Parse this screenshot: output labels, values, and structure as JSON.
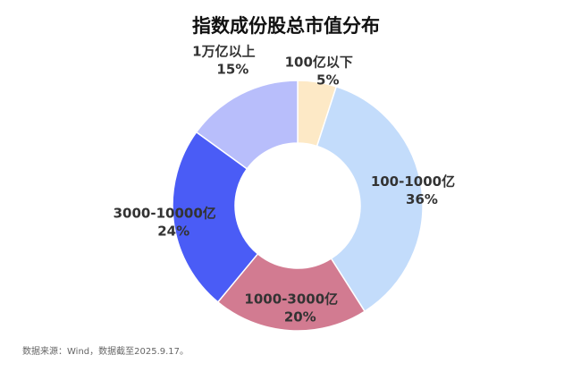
{
  "chart_data": {
    "type": "pie",
    "title": "指数成份股总市值分布",
    "categories": [
      "100亿以下",
      "100-1000亿",
      "1000-3000亿",
      "3000-10000亿",
      "1万亿以上"
    ],
    "values": [
      5,
      36,
      20,
      24,
      15
    ],
    "value_labels": [
      "5%",
      "36%",
      "20%",
      "24%",
      "15%"
    ],
    "colors": [
      "#fde9c6",
      "#c3dcfb",
      "#d27b91",
      "#4a5cf6",
      "#b8befb"
    ],
    "note": "数据来源：Wind，数据截至2025.9.17。"
  }
}
